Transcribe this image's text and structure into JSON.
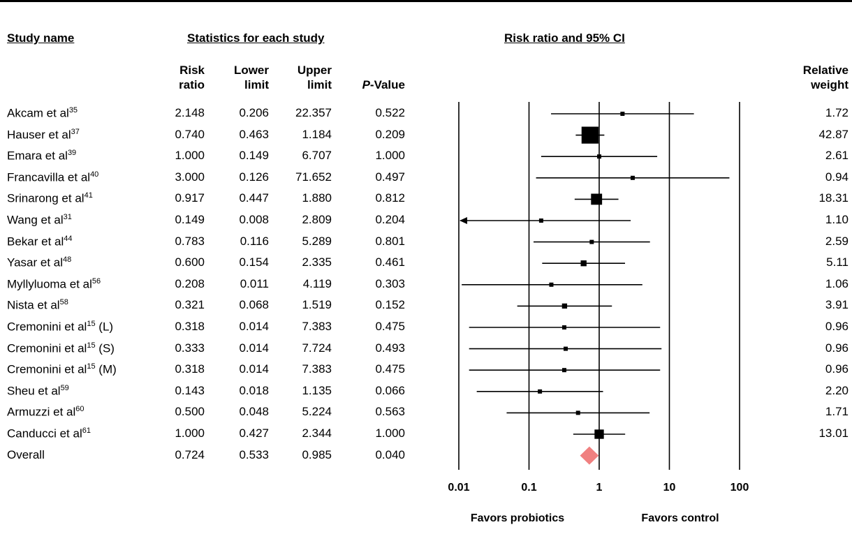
{
  "headers": {
    "study": "Study name",
    "stats": "Statistics for each study",
    "plot": "Risk ratio and 95% CI"
  },
  "columns": {
    "rr": "Risk\nratio",
    "lower": "Lower\nlimit",
    "upper": "Upper\nlimit",
    "p_prefix": "P",
    "p_suffix": "-Value",
    "weight": "Relative\nweight"
  },
  "chart_data": {
    "type": "forest",
    "scale": "log",
    "xlim": [
      0.01,
      100
    ],
    "ticks": [
      "0.01",
      "0.1",
      "1",
      "10",
      "100"
    ],
    "tick_values": [
      0.01,
      0.1,
      1,
      10,
      100
    ],
    "favors_left": "Favors probiotics",
    "favors_right": "Favors control",
    "studies": [
      {
        "name": "Akcam et al",
        "ref": "35",
        "suffix": "",
        "rr": "2.148",
        "lower": "0.206",
        "upper": "22.357",
        "p": "0.522",
        "weight": "1.72"
      },
      {
        "name": "Hauser et al",
        "ref": "37",
        "suffix": "",
        "rr": "0.740",
        "lower": "0.463",
        "upper": "1.184",
        "p": "0.209",
        "weight": "42.87"
      },
      {
        "name": "Emara et al",
        "ref": "39",
        "suffix": "",
        "rr": "1.000",
        "lower": "0.149",
        "upper": "6.707",
        "p": "1.000",
        "weight": "2.61"
      },
      {
        "name": "Francavilla et al",
        "ref": "40",
        "suffix": "",
        "rr": "3.000",
        "lower": "0.126",
        "upper": "71.652",
        "p": "0.497",
        "weight": "0.94"
      },
      {
        "name": "Srinarong et al",
        "ref": "41",
        "suffix": "",
        "rr": "0.917",
        "lower": "0.447",
        "upper": "1.880",
        "p": "0.812",
        "weight": "18.31"
      },
      {
        "name": "Wang et al",
        "ref": "31",
        "suffix": "",
        "rr": "0.149",
        "lower": "0.008",
        "upper": "2.809",
        "p": "0.204",
        "weight": "1.10"
      },
      {
        "name": "Bekar et al",
        "ref": "44",
        "suffix": "",
        "rr": "0.783",
        "lower": "0.116",
        "upper": "5.289",
        "p": "0.801",
        "weight": "2.59"
      },
      {
        "name": "Yasar et al",
        "ref": "48",
        "suffix": "",
        "rr": "0.600",
        "lower": "0.154",
        "upper": "2.335",
        "p": "0.461",
        "weight": "5.11"
      },
      {
        "name": "Myllyluoma et al",
        "ref": "56",
        "suffix": "",
        "rr": "0.208",
        "lower": "0.011",
        "upper": "4.119",
        "p": "0.303",
        "weight": "1.06"
      },
      {
        "name": "Nista et al",
        "ref": "58",
        "suffix": "",
        "rr": "0.321",
        "lower": "0.068",
        "upper": "1.519",
        "p": "0.152",
        "weight": "3.91"
      },
      {
        "name": "Cremonini et al",
        "ref": "15",
        "suffix": " (L)",
        "rr": "0.318",
        "lower": "0.014",
        "upper": "7.383",
        "p": "0.475",
        "weight": "0.96"
      },
      {
        "name": "Cremonini et al",
        "ref": "15",
        "suffix": " (S)",
        "rr": "0.333",
        "lower": "0.014",
        "upper": "7.724",
        "p": "0.493",
        "weight": "0.96"
      },
      {
        "name": "Cremonini et al",
        "ref": "15",
        "suffix": " (M)",
        "rr": "0.318",
        "lower": "0.014",
        "upper": "7.383",
        "p": "0.475",
        "weight": "0.96"
      },
      {
        "name": "Sheu et al",
        "ref": "59",
        "suffix": "",
        "rr": "0.143",
        "lower": "0.018",
        "upper": "1.135",
        "p": "0.066",
        "weight": "2.20"
      },
      {
        "name": "Armuzzi et al",
        "ref": "60",
        "suffix": "",
        "rr": "0.500",
        "lower": "0.048",
        "upper": "5.224",
        "p": "0.563",
        "weight": "1.71"
      },
      {
        "name": "Canducci et al",
        "ref": "61",
        "suffix": "",
        "rr": "1.000",
        "lower": "0.427",
        "upper": "2.344",
        "p": "1.000",
        "weight": "13.01"
      }
    ],
    "overall": {
      "name": "Overall",
      "rr": "0.724",
      "lower": "0.533",
      "upper": "0.985",
      "p": "0.040"
    },
    "colors": {
      "overall_diamond": "#f08080",
      "marker": "#000000"
    }
  }
}
